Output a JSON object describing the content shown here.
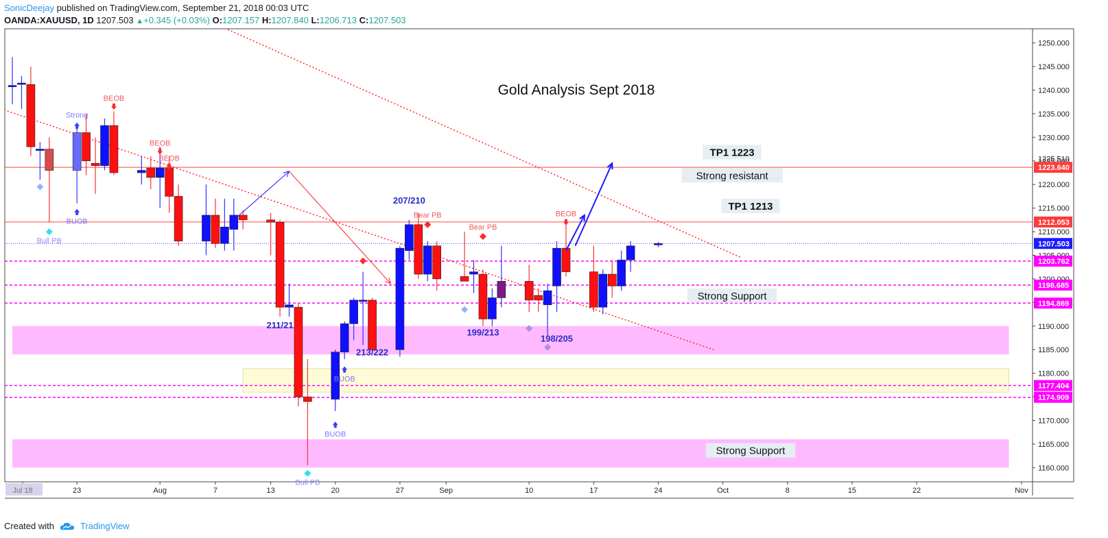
{
  "header": {
    "author": "SonicDeejay",
    "published": "published on TradingView.com, September 21, 2018 00:03 UTC",
    "symbol": "OANDA:XAUUSD, 1D",
    "last": "1207.503",
    "change_arrow": "▲",
    "change": "+0.345 (+0.03%)",
    "open_label": "O:",
    "open": "1207.157",
    "high_label": "H:",
    "high": "1207.840",
    "low_label": "L:",
    "low": "1206.713",
    "close_label": "C:",
    "close": "1207.503"
  },
  "footer": {
    "created_with": "Created with",
    "brand": "TradingView",
    "logo_icon": "tradingview-cloud-icon"
  },
  "colors": {
    "bull": "#0000ff",
    "bear": "#ff0000",
    "zone_pink": "#ff80ff",
    "zone_yellow": "#fffcd0",
    "level_magenta": "#ff00ff",
    "last_price": "#1c1cff",
    "author": "#2196f3"
  },
  "chart_data": {
    "type": "candlestick",
    "title": "Gold Analysis Sept 2018",
    "ylim": [
      1157,
      1253
    ],
    "y_ticks": [
      1160,
      1165,
      1170,
      1175,
      1180,
      1185,
      1190,
      1195,
      1200,
      1205,
      1210,
      1215,
      1220,
      1225,
      1230,
      1235,
      1240,
      1245,
      1250
    ],
    "y_tick_labels": [
      "1160.000",
      "1165.000",
      "1170.000",
      "1175.000",
      "1180.000",
      "1185.000",
      "1190.000",
      "1195.000",
      "1200.000",
      "1205.000",
      "1210.000",
      "1215.000",
      "1220.000",
      "1225.000",
      "1230.000",
      "1235.000",
      "1240.000",
      "1245.000",
      "1250.000"
    ],
    "x_tick_labels": [
      "Jul 18",
      "23",
      "Aug",
      "7",
      "13",
      "20",
      "27",
      "Sep",
      "10",
      "17",
      "24",
      "Oct",
      "8",
      "15",
      "22",
      "Nov"
    ],
    "candles": [
      {
        "date": "2018-07-16",
        "o": 1241.0,
        "h": 1247.0,
        "l": 1237.0,
        "c": 1241.0
      },
      {
        "date": "2018-07-17",
        "o": 1241.5,
        "h": 1243.0,
        "l": 1236.0,
        "c": 1241.5
      },
      {
        "date": "2018-07-18",
        "o": 1241.2,
        "h": 1245.0,
        "l": 1226.0,
        "c": 1228.0
      },
      {
        "date": "2018-07-19",
        "o": 1227.5,
        "h": 1229.0,
        "l": 1221.0,
        "c": 1227.5
      },
      {
        "date": "2018-07-20",
        "o": 1227.5,
        "h": 1230.0,
        "l": 1212.0,
        "c": 1223.0
      },
      {
        "date": "2018-07-23",
        "o": 1223.0,
        "h": 1232.0,
        "l": 1216.0,
        "c": 1231.0
      },
      {
        "date": "2018-07-24",
        "o": 1231.0,
        "h": 1235.0,
        "l": 1222.0,
        "c": 1225.0
      },
      {
        "date": "2018-07-25",
        "o": 1224.5,
        "h": 1230.0,
        "l": 1218.0,
        "c": 1224.0
      },
      {
        "date": "2018-07-26",
        "o": 1224.0,
        "h": 1234.0,
        "l": 1223.0,
        "c": 1232.5
      },
      {
        "date": "2018-07-27",
        "o": 1232.5,
        "h": 1235.5,
        "l": 1222.0,
        "c": 1222.5
      },
      {
        "date": "2018-07-30",
        "o": 1222.5,
        "h": 1226.0,
        "l": 1220.0,
        "c": 1223.0
      },
      {
        "date": "2018-07-31",
        "o": 1223.5,
        "h": 1226.0,
        "l": 1219.0,
        "c": 1221.5
      },
      {
        "date": "2018-08-01",
        "o": 1221.5,
        "h": 1228.0,
        "l": 1215.0,
        "c": 1223.5
      },
      {
        "date": "2018-08-02",
        "o": 1223.5,
        "h": 1226.0,
        "l": 1214.0,
        "c": 1217.5
      },
      {
        "date": "2018-08-03",
        "o": 1217.5,
        "h": 1220.0,
        "l": 1207.0,
        "c": 1208.0
      },
      {
        "date": "2018-08-06",
        "o": 1208.0,
        "h": 1220.0,
        "l": 1205.0,
        "c": 1213.5
      },
      {
        "date": "2018-08-07",
        "o": 1213.5,
        "h": 1217.0,
        "l": 1206.5,
        "c": 1207.5
      },
      {
        "date": "2018-08-08",
        "o": 1207.5,
        "h": 1217.0,
        "l": 1206.0,
        "c": 1211.0
      },
      {
        "date": "2018-08-09",
        "o": 1210.5,
        "h": 1217.0,
        "l": 1206.0,
        "c": 1213.5
      },
      {
        "date": "2018-08-10",
        "o": 1213.5,
        "h": 1214.5,
        "l": 1210.5,
        "c": 1212.5
      },
      {
        "date": "2018-08-13",
        "o": 1212.5,
        "h": 1214.0,
        "l": 1205.0,
        "c": 1212.0
      },
      {
        "date": "2018-08-14",
        "o": 1212.0,
        "h": 1212.5,
        "l": 1192.0,
        "c": 1194.0
      },
      {
        "date": "2018-08-15",
        "o": 1194.0,
        "h": 1199.0,
        "l": 1192.0,
        "c": 1194.5
      },
      {
        "date": "2018-08-16",
        "o": 1194.0,
        "h": 1195.0,
        "l": 1173.0,
        "c": 1175.0
      },
      {
        "date": "2018-08-17",
        "o": 1175.0,
        "h": 1183.0,
        "l": 1160.5,
        "c": 1174.0
      },
      {
        "date": "2018-08-20",
        "o": 1174.5,
        "h": 1185.0,
        "l": 1172.0,
        "c": 1184.5
      },
      {
        "date": "2018-08-21",
        "o": 1184.5,
        "h": 1191.0,
        "l": 1183.0,
        "c": 1190.5
      },
      {
        "date": "2018-08-22",
        "o": 1190.5,
        "h": 1196.0,
        "l": 1187.0,
        "c": 1195.5
      },
      {
        "date": "2018-08-23",
        "o": 1195.5,
        "h": 1201.5,
        "l": 1186.0,
        "c": 1195.5
      },
      {
        "date": "2018-08-24",
        "o": 1195.5,
        "h": 1196.0,
        "l": 1184.0,
        "c": 1185.0
      },
      {
        "date": "2018-08-27",
        "o": 1185.0,
        "h": 1207.0,
        "l": 1183.5,
        "c": 1206.5
      },
      {
        "date": "2018-08-28",
        "o": 1206.0,
        "h": 1212.5,
        "l": 1204.0,
        "c": 1211.5
      },
      {
        "date": "2018-08-29",
        "o": 1211.5,
        "h": 1214.0,
        "l": 1200.0,
        "c": 1201.0
      },
      {
        "date": "2018-08-30",
        "o": 1201.0,
        "h": 1208.0,
        "l": 1199.5,
        "c": 1207.0
      },
      {
        "date": "2018-08-31",
        "o": 1207.0,
        "h": 1208.0,
        "l": 1197.5,
        "c": 1200.0
      },
      {
        "date": "2018-09-03",
        "o": 1200.5,
        "h": 1210.0,
        "l": 1199.5,
        "c": 1199.5
      },
      {
        "date": "2018-09-04",
        "o": 1201.0,
        "h": 1204.0,
        "l": 1197.0,
        "c": 1201.5
      },
      {
        "date": "2018-09-05",
        "o": 1201.0,
        "h": 1202.0,
        "l": 1190.0,
        "c": 1191.5
      },
      {
        "date": "2018-09-06",
        "o": 1191.5,
        "h": 1198.0,
        "l": 1190.0,
        "c": 1196.0
      },
      {
        "date": "2018-09-07",
        "o": 1196.0,
        "h": 1207.0,
        "l": 1194.0,
        "c": 1199.5
      },
      {
        "date": "2018-09-10",
        "o": 1199.5,
        "h": 1203.0,
        "l": 1193.0,
        "c": 1195.5
      },
      {
        "date": "2018-09-11",
        "o": 1196.5,
        "h": 1198.0,
        "l": 1193.0,
        "c": 1195.5
      },
      {
        "date": "2018-09-12",
        "o": 1194.5,
        "h": 1199.0,
        "l": 1188.0,
        "c": 1197.5
      },
      {
        "date": "2018-09-13",
        "o": 1198.5,
        "h": 1208.0,
        "l": 1193.0,
        "c": 1206.5
      },
      {
        "date": "2018-09-14",
        "o": 1206.5,
        "h": 1212.5,
        "l": 1200.5,
        "c": 1201.5
      },
      {
        "date": "2018-09-17",
        "o": 1201.5,
        "h": 1207.0,
        "l": 1193.0,
        "c": 1194.0
      },
      {
        "date": "2018-09-18",
        "o": 1194.0,
        "h": 1202.0,
        "l": 1192.5,
        "c": 1201.0
      },
      {
        "date": "2018-09-19",
        "o": 1201.0,
        "h": 1204.0,
        "l": 1196.0,
        "c": 1198.5
      },
      {
        "date": "2018-09-20",
        "o": 1198.5,
        "h": 1206.0,
        "l": 1197.5,
        "c": 1204.0
      },
      {
        "date": "2018-09-21",
        "o": 1204.0,
        "h": 1208.0,
        "l": 1201.5,
        "c": 1207.0
      },
      {
        "date": "2018-09-24",
        "o": 1207.2,
        "h": 1207.8,
        "l": 1206.7,
        "c": 1207.5
      }
    ],
    "price_tags": [
      {
        "label": "1225.510",
        "value": 1225.51,
        "style": "plain"
      },
      {
        "label": "1223.640",
        "value": 1223.64,
        "style": "red"
      },
      {
        "label": "1212.053",
        "value": 1212.053,
        "style": "red"
      },
      {
        "label": "1207.503",
        "value": 1207.503,
        "style": "blue"
      },
      {
        "label": "1203.762",
        "value": 1203.762,
        "style": "magenta"
      },
      {
        "label": "1198.685",
        "value": 1198.685,
        "style": "magenta"
      },
      {
        "label": "1194.869",
        "value": 1194.869,
        "style": "magenta"
      },
      {
        "label": "1177.404",
        "value": 1177.404,
        "style": "magenta"
      },
      {
        "label": "1174.909",
        "value": 1174.909,
        "style": "magenta"
      }
    ],
    "horizontal_lines": [
      {
        "value": 1223.64,
        "style": "solid",
        "color": "red"
      },
      {
        "value": 1212.053,
        "style": "solid",
        "color": "red"
      },
      {
        "value": 1207.503,
        "style": "dotted",
        "color": "blue"
      },
      {
        "value": 1203.762,
        "style": "dashed",
        "color": "magenta"
      },
      {
        "value": 1198.685,
        "style": "dashed",
        "color": "magenta"
      },
      {
        "value": 1194.869,
        "style": "dashed",
        "color": "magenta"
      },
      {
        "value": 1177.404,
        "style": "dashed",
        "color": "magenta"
      },
      {
        "value": 1174.909,
        "style": "dashed",
        "color": "magenta"
      }
    ],
    "zones": [
      {
        "from_date": "2018-07-16",
        "to_date": "2018-11-01",
        "low": 1184.0,
        "high": 1190.0,
        "color": "pink"
      },
      {
        "from_date": "2018-07-16",
        "to_date": "2018-11-01",
        "low": 1160.0,
        "high": 1166.0,
        "color": "pink"
      },
      {
        "from_date": "2018-08-10",
        "to_date": "2018-11-01",
        "low": 1176.0,
        "high": 1181.0,
        "color": "yellow"
      }
    ],
    "trendlines": [
      {
        "from": [
          "2018-07-13",
          1237.2
        ],
        "to": [
          "2018-09-30",
          1185.0
        ],
        "style": "dotted",
        "color": "red"
      },
      {
        "from": [
          "2018-08-07",
          1254.0
        ],
        "to": [
          "2018-10-03",
          1204.5
        ],
        "style": "dotted",
        "color": "red"
      }
    ],
    "arrows": [
      {
        "from": [
          "2018-08-09",
          1212.5
        ],
        "to": [
          "2018-08-15",
          1222.8
        ],
        "color": "blue",
        "width": 1
      },
      {
        "from": [
          "2018-08-15",
          1222.8
        ],
        "to": [
          "2018-08-26",
          1199.0
        ],
        "color": "red",
        "width": 1
      },
      {
        "from": [
          "2018-09-14",
          1206.0
        ],
        "to": [
          "2018-09-16",
          1213.5
        ],
        "color": "blue",
        "width": 2
      },
      {
        "from": [
          "2018-09-15",
          1207.0
        ],
        "to": [
          "2018-09-19",
          1224.5
        ],
        "color": "blue",
        "width": 2
      }
    ],
    "annotations": [
      {
        "text": "TP1 1223",
        "date": "2018-10-02",
        "value": 1226.2,
        "style": "box"
      },
      {
        "text": "Strong resistant",
        "date": "2018-10-02",
        "value": 1221.3,
        "style": "box-plain"
      },
      {
        "text": "TP1 1213",
        "date": "2018-10-04",
        "value": 1214.8,
        "style": "box"
      },
      {
        "text": "Strong Support",
        "date": "2018-10-02",
        "value": 1195.8,
        "style": "box-plain"
      },
      {
        "text": "Strong Support",
        "date": "2018-10-04",
        "value": 1163.0,
        "style": "box-plain"
      },
      {
        "text": "207/210",
        "date": "2018-08-28",
        "value": 1216.0,
        "style": "label"
      },
      {
        "text": "211/21",
        "date": "2018-08-14",
        "value": 1189.5,
        "style": "label"
      },
      {
        "text": "213/222",
        "date": "2018-08-24",
        "value": 1183.8,
        "style": "label"
      },
      {
        "text": "199/213",
        "date": "2018-09-05",
        "value": 1188.0,
        "style": "label"
      },
      {
        "text": "198/205",
        "date": "2018-09-13",
        "value": 1186.7,
        "style": "label"
      }
    ],
    "markers": [
      {
        "text": "Strong",
        "date": "2018-07-23",
        "value": 1233.0,
        "kind": "up",
        "color": "#3b3bff",
        "text_color": "#7a7aff"
      },
      {
        "text": "BEOB",
        "date": "2018-07-27",
        "value": 1236.0,
        "kind": "down",
        "color": "#ff2a2a",
        "text_color": "#f05a5a"
      },
      {
        "text": "BEOB",
        "date": "2018-08-01",
        "value": 1226.5,
        "kind": "down",
        "color": "#ff2a2a",
        "text_color": "#f05a5a"
      },
      {
        "text": "BEOB",
        "date": "2018-08-02",
        "value": 1223.3,
        "kind": "down",
        "color": "#ff2a2a",
        "text_color": "#f05a5a"
      },
      {
        "text": "BUOB",
        "date": "2018-07-23",
        "value": 1214.7,
        "kind": "up-below",
        "color": "#3b3bff",
        "text_color": "#7a7aff"
      },
      {
        "text": "Bull PB",
        "date": "2018-07-20",
        "value": 1210.0,
        "kind": "diamond-below",
        "color": "#31e0f0",
        "text_color": "#8a8aff"
      },
      {
        "text": "",
        "date": "2018-07-19",
        "value": 1219.5,
        "kind": "diamond",
        "color": "#8fb4ff",
        "text_color": ""
      },
      {
        "text": "BUOB",
        "date": "2018-08-21",
        "value": 1181.3,
        "kind": "up-below",
        "color": "#3b3bff",
        "text_color": "#7a7aff"
      },
      {
        "text": "BUOB",
        "date": "2018-08-20",
        "value": 1169.6,
        "kind": "up-below",
        "color": "#3b3bff",
        "text_color": "#7a7aff"
      },
      {
        "text": "Bull PB",
        "date": "2018-08-17",
        "value": 1158.8,
        "kind": "diamond-below",
        "color": "#31e0f0",
        "text_color": "#8a8aff"
      },
      {
        "text": "",
        "date": "2018-08-23",
        "value": 1203.8,
        "kind": "diamond",
        "color": "#ff2a2a",
        "text_color": ""
      },
      {
        "text": "Bear PB",
        "date": "2018-08-30",
        "value": 1211.5,
        "kind": "diamond-above",
        "color": "#ff2a2a",
        "text_color": "#f05a5a"
      },
      {
        "text": "Bear PB",
        "date": "2018-09-05",
        "value": 1209.0,
        "kind": "diamond-above",
        "color": "#ff2a2a",
        "text_color": "#f05a5a"
      },
      {
        "text": "BEOB",
        "date": "2018-09-14",
        "value": 1211.5,
        "kind": "down",
        "color": "#ff2a2a",
        "text_color": "#f05a5a"
      },
      {
        "text": "",
        "date": "2018-09-03",
        "value": 1193.5,
        "kind": "diamond",
        "color": "#8fb4ff",
        "text_color": ""
      },
      {
        "text": "",
        "date": "2018-09-10",
        "value": 1189.5,
        "kind": "diamond",
        "color": "#b08fe0",
        "text_color": ""
      },
      {
        "text": "",
        "date": "2018-09-12",
        "value": 1185.5,
        "kind": "diamond",
        "color": "#b08fe0",
        "text_color": ""
      }
    ],
    "grid": false,
    "legend": "none"
  }
}
